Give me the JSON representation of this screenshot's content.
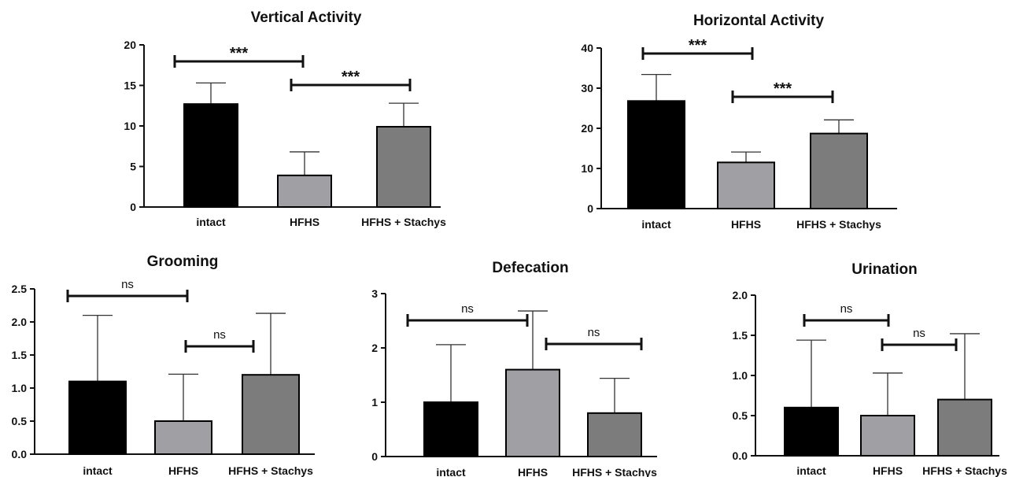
{
  "chart_data": [
    {
      "type": "bar",
      "title": "Vertical Activity",
      "categories": [
        "intact",
        "HFHS",
        "HFHS + Stachys"
      ],
      "values": [
        12.7,
        3.9,
        9.9
      ],
      "error": [
        2.6,
        2.9,
        2.9
      ],
      "ylim": [
        0,
        20
      ],
      "yticks": [
        "0",
        "5",
        "10",
        "15",
        "20"
      ],
      "colors": [
        "#000000",
        "#a0a0a4",
        "#7c7c7c"
      ],
      "significance": [
        {
          "from": 0,
          "to": 1,
          "label": "***"
        },
        {
          "from": 1,
          "to": 2,
          "label": "***"
        }
      ]
    },
    {
      "type": "bar",
      "title": "Horizontal Activity",
      "categories": [
        "intact",
        "HFHS",
        "HFHS + Stachys"
      ],
      "values": [
        26.8,
        11.5,
        18.7
      ],
      "error": [
        6.6,
        2.6,
        3.4
      ],
      "ylim": [
        0,
        40
      ],
      "yticks": [
        "0",
        "10",
        "20",
        "30",
        "40"
      ],
      "colors": [
        "#000000",
        "#a0a0a4",
        "#7c7c7c"
      ],
      "significance": [
        {
          "from": 0,
          "to": 1,
          "label": "***"
        },
        {
          "from": 1,
          "to": 2,
          "label": "***"
        }
      ]
    },
    {
      "type": "bar",
      "title": "Grooming",
      "categories": [
        "intact",
        "HFHS",
        "HFHS + Stachys"
      ],
      "values": [
        1.1,
        0.5,
        1.2
      ],
      "error": [
        1.0,
        0.71,
        0.93
      ],
      "ylim": [
        0,
        2.5
      ],
      "yticks": [
        "0.0",
        "0.5",
        "1.0",
        "1.5",
        "2.0",
        "2.5"
      ],
      "colors": [
        "#000000",
        "#a0a0a4",
        "#7c7c7c"
      ],
      "significance": [
        {
          "from": 0,
          "to": 1,
          "label": "ns"
        },
        {
          "from": 1,
          "to": 2,
          "label": "ns"
        }
      ]
    },
    {
      "type": "bar",
      "title": "Defecation",
      "categories": [
        "intact",
        "HFHS",
        "HFHS + Stachys"
      ],
      "values": [
        1.0,
        1.6,
        0.8
      ],
      "error": [
        1.06,
        1.08,
        0.64
      ],
      "ylim": [
        0,
        3
      ],
      "yticks": [
        "0",
        "1",
        "2",
        "3"
      ],
      "colors": [
        "#000000",
        "#a0a0a4",
        "#7c7c7c"
      ],
      "significance": [
        {
          "from": 0,
          "to": 1,
          "label": "ns"
        },
        {
          "from": 1,
          "to": 2,
          "label": "ns"
        }
      ]
    },
    {
      "type": "bar",
      "title": "Urination",
      "categories": [
        "intact",
        "HFHS",
        "HFHS + Stachys"
      ],
      "values": [
        0.6,
        0.5,
        0.7
      ],
      "error": [
        0.84,
        0.53,
        0.82
      ],
      "ylim": [
        0,
        2.0
      ],
      "yticks": [
        "0.0",
        "0.5",
        "1.0",
        "1.5",
        "2.0"
      ],
      "colors": [
        "#000000",
        "#a0a0a4",
        "#7c7c7c"
      ],
      "significance": [
        {
          "from": 0,
          "to": 1,
          "label": "ns"
        },
        {
          "from": 1,
          "to": 2,
          "label": "ns"
        }
      ]
    }
  ]
}
